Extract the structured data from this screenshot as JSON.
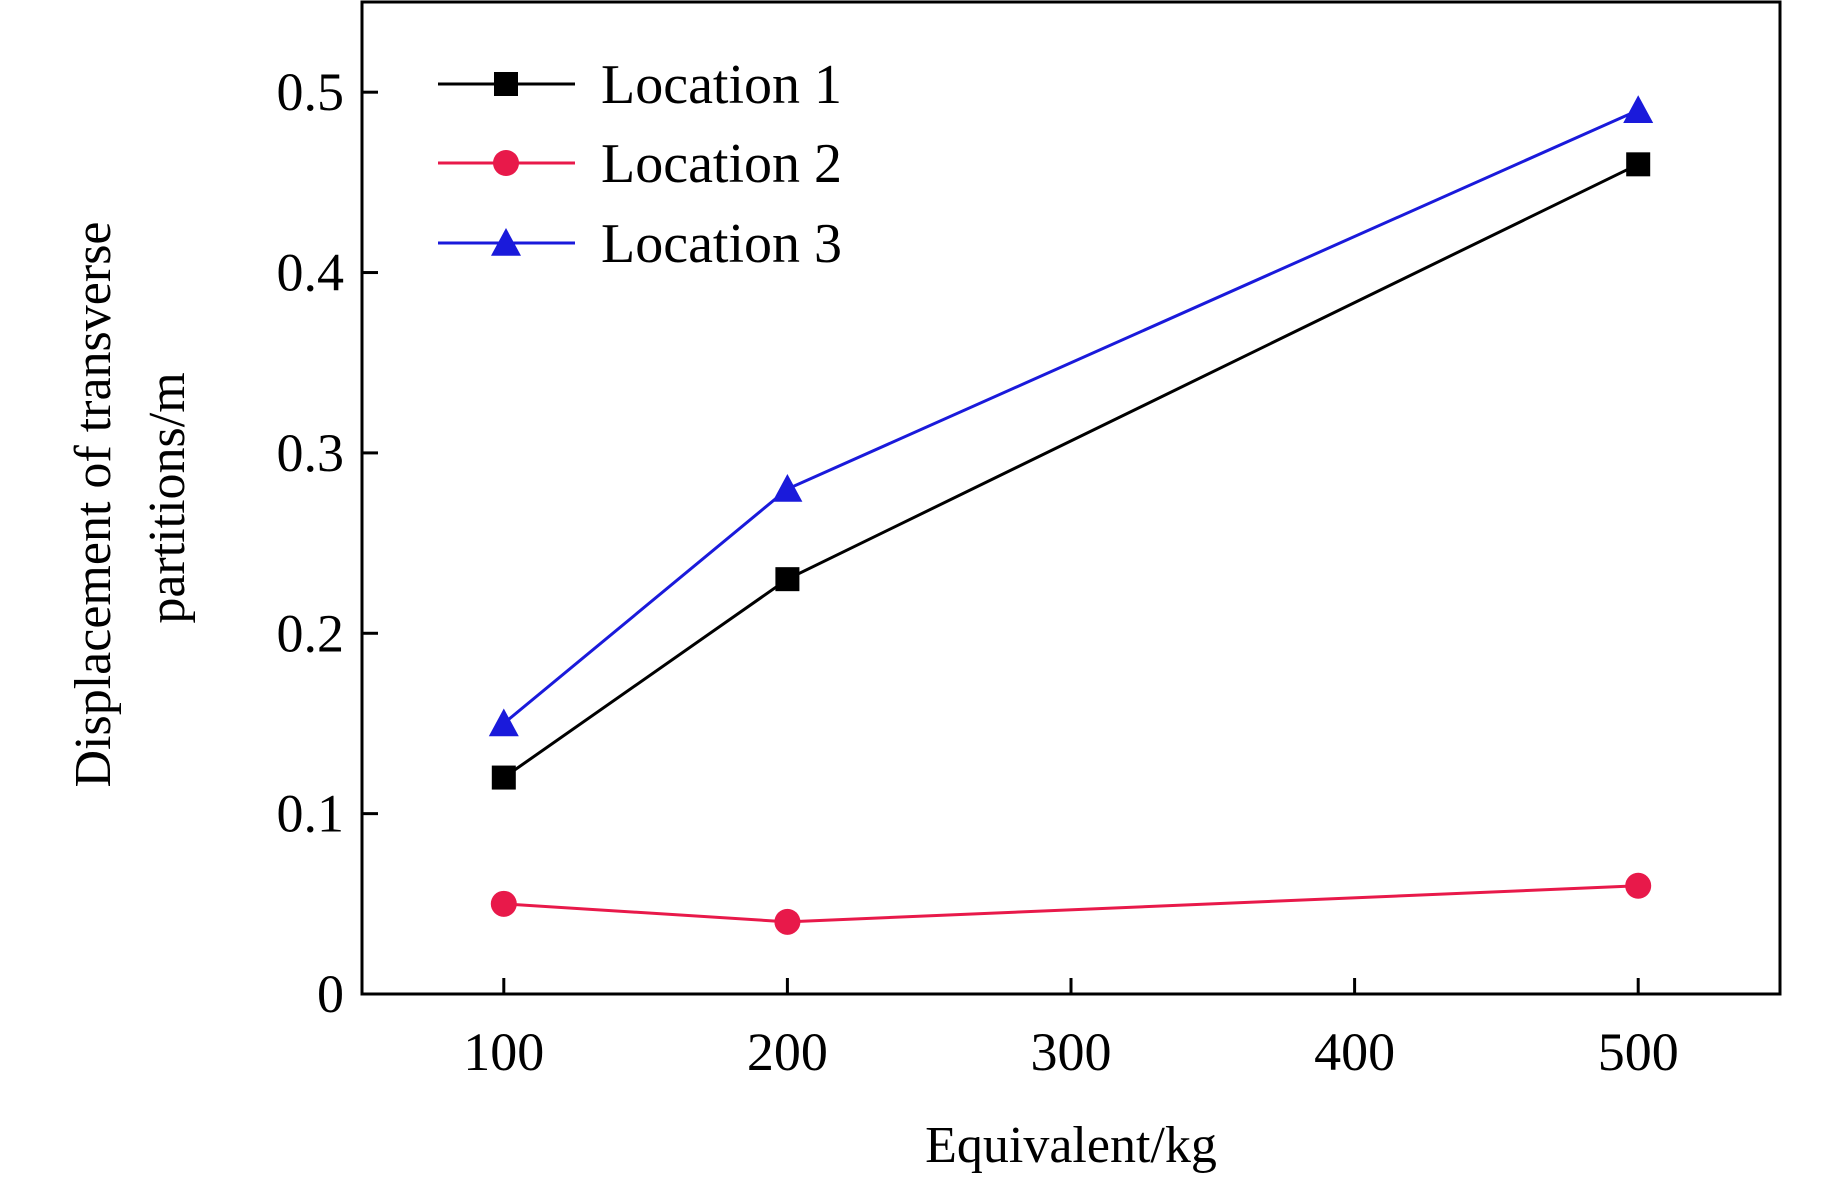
{
  "chart_data": {
    "type": "line",
    "title": "",
    "xlabel": "Equivalent/kg",
    "ylabel_lines": [
      "Displacement of transverse",
      "partitions/m"
    ],
    "xlim": [
      50,
      550
    ],
    "ylim": [
      0,
      0.55
    ],
    "xticks": [
      100,
      200,
      300,
      400,
      500
    ],
    "yticks": [
      0,
      0.1,
      0.2,
      0.3,
      0.4,
      0.5
    ],
    "ytick_labels": [
      "0",
      "0.1",
      "0.2",
      "0.3",
      "0.4",
      "0.5"
    ],
    "grid": false,
    "legend_position": "top-left",
    "x": [
      100,
      200,
      500
    ],
    "series": [
      {
        "name": "Location 1",
        "values": [
          0.12,
          0.23,
          0.46
        ],
        "color": "#000000",
        "marker": "square"
      },
      {
        "name": "Location 2",
        "values": [
          0.05,
          0.04,
          0.06
        ],
        "color": "#e8194a",
        "marker": "circle"
      },
      {
        "name": "Location 3",
        "values": [
          0.15,
          0.28,
          0.49
        ],
        "color": "#1a1adb",
        "marker": "triangle"
      }
    ]
  }
}
